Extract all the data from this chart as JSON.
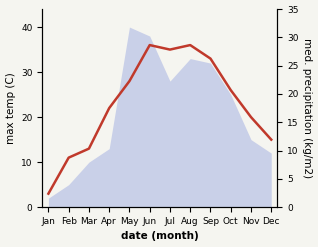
{
  "months": [
    "Jan",
    "Feb",
    "Mar",
    "Apr",
    "May",
    "Jun",
    "Jul",
    "Aug",
    "Sep",
    "Oct",
    "Nov",
    "Dec"
  ],
  "temperature": [
    3,
    11,
    13,
    22,
    28,
    36,
    35,
    36,
    33,
    26,
    20,
    15
  ],
  "precipitation": [
    2,
    5,
    10,
    13,
    40,
    38,
    28,
    33,
    32,
    25,
    15,
    12
  ],
  "temp_color": "#c0392b",
  "precip_fill_color": "#c5cce8",
  "precip_fill_alpha": 0.9,
  "temp_ylim": [
    0,
    44
  ],
  "precip_ylim": [
    0,
    44
  ],
  "right_ylim": [
    0,
    35
  ],
  "right_yticks": [
    0,
    5,
    10,
    15,
    20,
    25,
    30,
    35
  ],
  "temp_yticks": [
    0,
    10,
    20,
    30,
    40
  ],
  "xlabel": "date (month)",
  "ylabel_left": "max temp (C)",
  "ylabel_right": "med. precipitation (kg/m2)",
  "label_fontsize": 7.5,
  "tick_fontsize": 6.5,
  "line_width": 1.8,
  "bg_color": "#f5f5f0"
}
